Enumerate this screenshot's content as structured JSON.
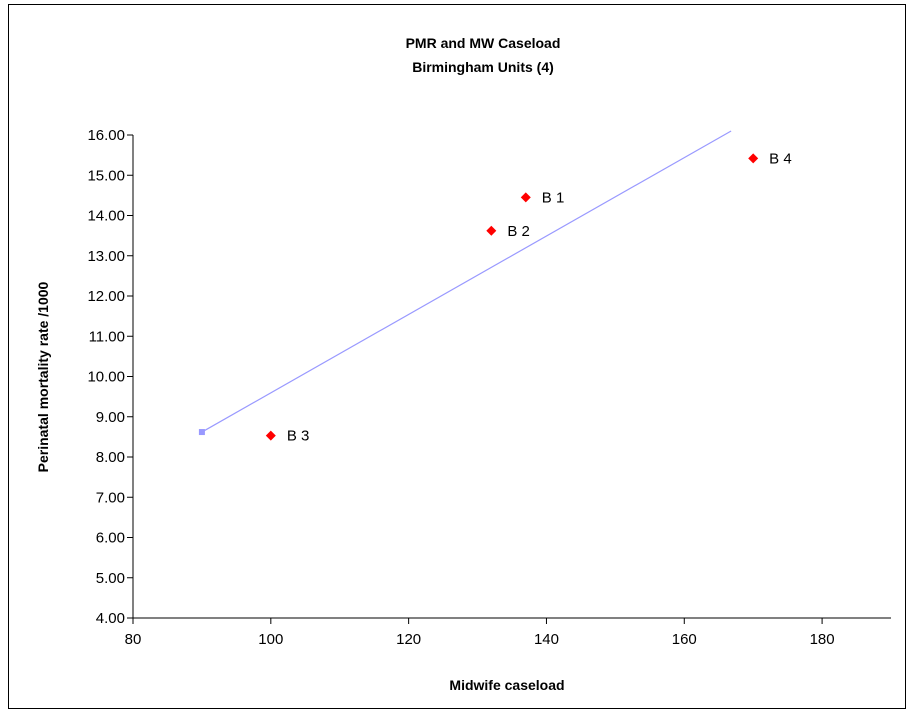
{
  "chart_data": {
    "type": "scatter",
    "title": "PMR and MW Caseload",
    "subtitle": "Birmingham Units (4)",
    "xlabel": "Midwife caseload",
    "ylabel": "Perinatal mortality rate /1000",
    "xlim": [
      80,
      190
    ],
    "ylim": [
      4.0,
      16.0
    ],
    "x_ticks": [
      80,
      100,
      120,
      140,
      160,
      180
    ],
    "x_tick_labels": [
      "80",
      "100",
      "120",
      "140",
      "160",
      "180"
    ],
    "y_ticks": [
      4,
      5,
      6,
      7,
      8,
      9,
      10,
      11,
      12,
      13,
      14,
      15,
      16
    ],
    "y_tick_labels": [
      "4.00",
      "5.00",
      "6.00",
      "7.00",
      "8.00",
      "9.00",
      "10.00",
      "11.00",
      "12.00",
      "13.00",
      "14.00",
      "15.00",
      "16.00"
    ],
    "grid": false,
    "points": [
      {
        "label": "B 1",
        "x": 137,
        "y": 14.45
      },
      {
        "label": "B 2",
        "x": 132,
        "y": 13.62
      },
      {
        "label": "B 3",
        "x": 100,
        "y": 8.53
      },
      {
        "label": "B 4",
        "x": 170,
        "y": 15.42
      }
    ],
    "trendline": {
      "x": [
        90,
        166.8
      ],
      "y": [
        8.62,
        16.1
      ]
    },
    "colors": {
      "points": "#ff0000",
      "trendline": "#9999ff",
      "axes": "#000000"
    }
  }
}
